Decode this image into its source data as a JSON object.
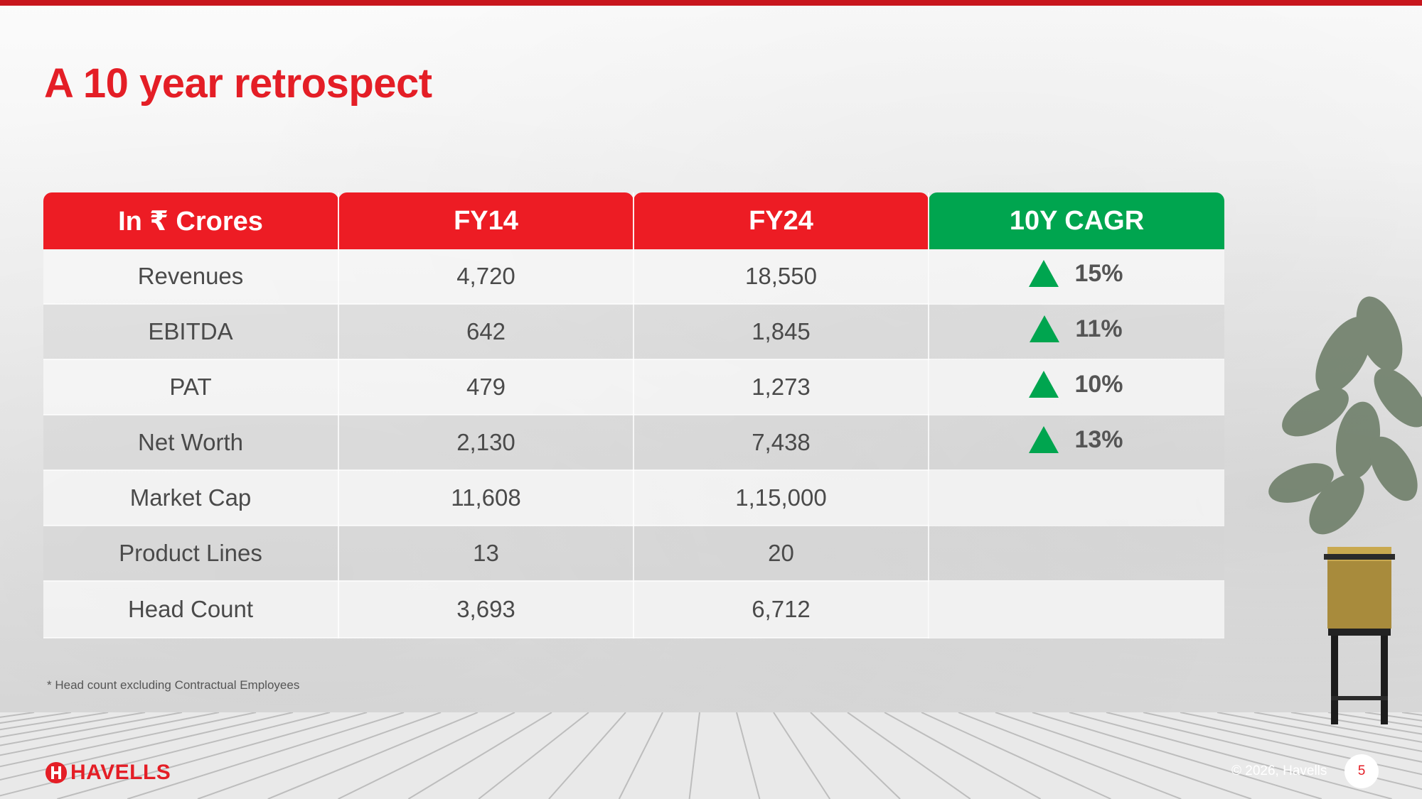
{
  "slide": {
    "title": "A 10 year retrospect",
    "footnote": "* Head count excluding Contractual Employees",
    "copyright": "© 2026, Havells",
    "page_number": "5",
    "logo_text": "HAVELLS"
  },
  "colors": {
    "brand_red": "#e41e26",
    "header_red": "#ed1c24",
    "cagr_green": "#00a54f"
  },
  "table": {
    "headers": [
      "In ₹ Crores",
      "FY14",
      "FY24",
      "10Y CAGR"
    ],
    "rows": [
      {
        "label": "Revenues",
        "fy14": "4,720",
        "fy24": "18,550",
        "cagr": "15%"
      },
      {
        "label": "EBITDA",
        "fy14": "642",
        "fy24": "1,845",
        "cagr": "11%"
      },
      {
        "label": "PAT",
        "fy14": "479",
        "fy24": "1,273",
        "cagr": "10%"
      },
      {
        "label": "Net Worth",
        "fy14": "2,130",
        "fy24": "7,438",
        "cagr": "13%"
      },
      {
        "label": "Market Cap",
        "fy14": "11,608",
        "fy24": "1,15,000",
        "cagr": ""
      },
      {
        "label": "Product Lines",
        "fy14": "13",
        "fy24": "20",
        "cagr": ""
      },
      {
        "label": "Head Count",
        "fy14": "3,693",
        "fy24": "6,712",
        "cagr": ""
      }
    ],
    "cagr_icon": "up-triangle-icon"
  }
}
